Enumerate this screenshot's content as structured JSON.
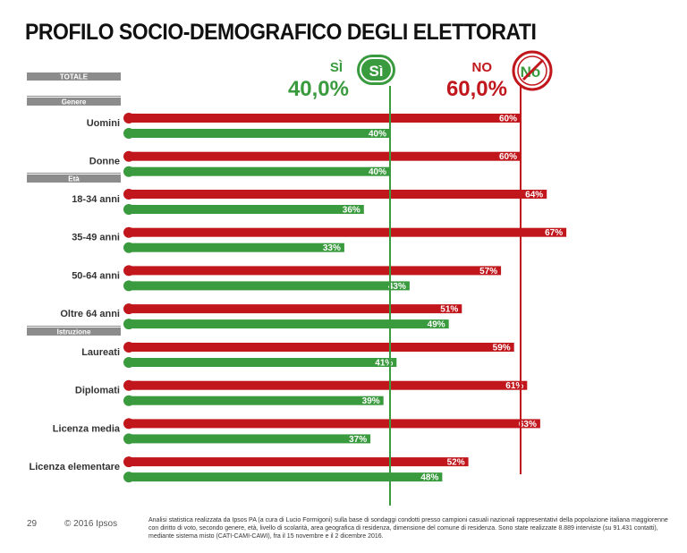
{
  "title": "PROFILO SOCIO-DEMOGRAFICO DEGLI ELETTORATI",
  "colors": {
    "yes": "#3a9a3e",
    "no": "#c0161c",
    "section_bar": "#8c8c8c"
  },
  "totals": {
    "yes_label": "SÌ",
    "yes_value": "40,0%",
    "yes_badge": "Sì",
    "no_label": "NO",
    "no_value": "60,0%",
    "no_badge": "No"
  },
  "chart_data": {
    "type": "bar",
    "orientation": "horizontal",
    "title": "PROFILO SOCIO-DEMOGRAFICO DEGLI ELETTORATI",
    "total_header": "TOTALE",
    "reference_lines": {
      "si": 40.0,
      "no": 60.0
    },
    "series": [
      {
        "key": "no",
        "name": "NO"
      },
      {
        "key": "si",
        "name": "SÌ"
      }
    ],
    "sections": [
      {
        "label": "Genere",
        "rows": [
          {
            "label": "Uomini",
            "no": 60,
            "si": 40
          },
          {
            "label": "Donne",
            "no": 60,
            "si": 40
          }
        ]
      },
      {
        "label": "Età",
        "rows": [
          {
            "label": "18-34 anni",
            "no": 64,
            "si": 36
          },
          {
            "label": "35-49 anni",
            "no": 67,
            "si": 33
          },
          {
            "label": "50-64 anni",
            "no": 57,
            "si": 43
          },
          {
            "label": "Oltre 64 anni",
            "no": 51,
            "si": 49
          }
        ]
      },
      {
        "label": "Istruzione",
        "rows": [
          {
            "label": "Laureati",
            "no": 59,
            "si": 41
          },
          {
            "label": "Diplomati",
            "no": 61,
            "si": 39
          },
          {
            "label": "Licenza media",
            "no": 63,
            "si": 37
          },
          {
            "label": "Licenza elementare",
            "no": 52,
            "si": 48
          }
        ]
      }
    ]
  },
  "footer": {
    "page": "29",
    "copyright": "© 2016  Ipsos",
    "note": "Analisi statistica realizzata da Ipsos PA (a cura di Lucio Formigoni) sulla base di sondaggi condotti presso campioni casuali nazionali rappresentativi della popolazione italiana maggiorenne con diritto di voto, secondo genere, età, livello di scolarità, area geografica di residenza, dimensione del comune di residenza.  Sono state realizzate 8.889 interviste (su 91.431 contatti), mediante sistema misto (CATI-CAMI-CAWI), fra il 15 novembre e il 2 dicembre 2016."
  }
}
